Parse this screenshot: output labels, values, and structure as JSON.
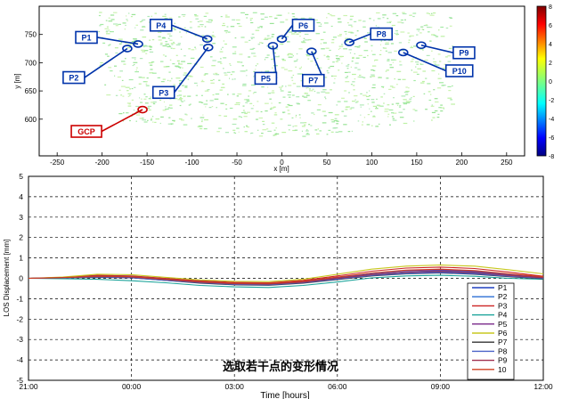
{
  "chart_data": [
    {
      "type": "scatter",
      "xlabel": "x [m]",
      "ylabel": "y [m]",
      "xlim": [
        -270,
        270
      ],
      "ylim": [
        535,
        800
      ],
      "xticks": [
        "-250",
        "-200",
        "-150",
        "-100",
        "-50",
        "0",
        "50",
        "100",
        "150",
        "200",
        "250"
      ],
      "xtick_values": [
        -250,
        -200,
        -150,
        -100,
        -50,
        0,
        50,
        100,
        150,
        200,
        250
      ],
      "yticks": [
        "600",
        "650",
        "700",
        "750"
      ],
      "ytick_values": [
        600,
        650,
        700,
        750
      ],
      "colorbar": {
        "ticks": [
          "8",
          "6",
          "4",
          "2",
          "0",
          "-2",
          "-4",
          "-6",
          "-8"
        ],
        "tick_values": [
          8,
          6,
          4,
          2,
          0,
          -2,
          -4,
          -6,
          -8
        ],
        "range": [
          -8,
          8
        ]
      },
      "points": [
        {
          "label": "P1",
          "x": -160,
          "y": 733
        },
        {
          "label": "P2",
          "x": -172,
          "y": 725
        },
        {
          "label": "P3",
          "x": -82,
          "y": 727
        },
        {
          "label": "P4",
          "x": -83,
          "y": 742
        },
        {
          "label": "P5",
          "x": -10,
          "y": 730
        },
        {
          "label": "P6",
          "x": 0,
          "y": 742
        },
        {
          "label": "P7",
          "x": 33,
          "y": 720
        },
        {
          "label": "P8",
          "x": 75,
          "y": 736
        },
        {
          "label": "P9",
          "x": 155,
          "y": 731
        },
        {
          "label": "P10",
          "x": 135,
          "y": 718
        },
        {
          "label": "GCP",
          "x": -155,
          "y": 617
        }
      ],
      "point_color": "#0033aa",
      "gcp_color": "#cc0000"
    },
    {
      "type": "line",
      "xlabel": "Time [hours]",
      "ylabel": "LOS Displacement [mm]",
      "annotation": "选取若干点的变形情况",
      "xlim": [
        0,
        15
      ],
      "ylim": [
        -5,
        5
      ],
      "xticks": [
        "21:00",
        "00:00",
        "03:00",
        "06:00",
        "09:00",
        "12:00"
      ],
      "xtick_values": [
        0,
        3,
        6,
        9,
        12,
        15
      ],
      "yticks": [
        "5",
        "4",
        "3",
        "2",
        "1",
        "0",
        "-1",
        "-2",
        "-3",
        "-4",
        "-5"
      ],
      "ytick_values": [
        5,
        4,
        3,
        2,
        1,
        0,
        -1,
        -2,
        -3,
        -4,
        -5
      ],
      "x": [
        0,
        1,
        2,
        3,
        4,
        5,
        6,
        7,
        8,
        9,
        10,
        11,
        12,
        13,
        14,
        15
      ],
      "series": [
        {
          "name": "P1",
          "color": "#1f3fbf",
          "values": [
            0,
            0.02,
            0.08,
            0.05,
            -0.08,
            -0.2,
            -0.28,
            -0.3,
            -0.2,
            -0.02,
            0.15,
            0.25,
            0.3,
            0.25,
            0.12,
            0.02
          ]
        },
        {
          "name": "P2",
          "color": "#2b6fd6",
          "values": [
            0,
            0.03,
            0.1,
            0.08,
            -0.05,
            -0.18,
            -0.26,
            -0.28,
            -0.18,
            0.02,
            0.2,
            0.32,
            0.38,
            0.32,
            0.18,
            0.05
          ]
        },
        {
          "name": "P3",
          "color": "#cc2222",
          "values": [
            0,
            0.05,
            0.15,
            0.12,
            0.0,
            -0.12,
            -0.2,
            -0.22,
            -0.1,
            0.12,
            0.35,
            0.5,
            0.55,
            0.48,
            0.3,
            0.1
          ]
        },
        {
          "name": "P4",
          "color": "#1aa39a",
          "values": [
            0,
            -0.02,
            -0.05,
            -0.12,
            -0.22,
            -0.35,
            -0.42,
            -0.45,
            -0.35,
            -0.18,
            0.02,
            0.12,
            0.15,
            0.1,
            0.0,
            -0.05
          ]
        },
        {
          "name": "P5",
          "color": "#7a2a8a",
          "values": [
            0,
            0.04,
            0.12,
            0.1,
            -0.02,
            -0.15,
            -0.24,
            -0.26,
            -0.15,
            0.05,
            0.25,
            0.38,
            0.42,
            0.36,
            0.2,
            0.06
          ]
        },
        {
          "name": "P6",
          "color": "#c8c820",
          "values": [
            0,
            0.06,
            0.2,
            0.18,
            0.05,
            -0.08,
            -0.15,
            -0.16,
            -0.05,
            0.2,
            0.45,
            0.6,
            0.65,
            0.6,
            0.42,
            0.22
          ]
        },
        {
          "name": "P7",
          "color": "#333333",
          "values": [
            0,
            0.02,
            0.05,
            0.02,
            -0.1,
            -0.24,
            -0.32,
            -0.34,
            -0.24,
            -0.06,
            0.12,
            0.22,
            0.26,
            0.2,
            0.08,
            -0.02
          ]
        },
        {
          "name": "P8",
          "color": "#4a62c8",
          "values": [
            0,
            0.02,
            0.06,
            0.03,
            -0.1,
            -0.22,
            -0.3,
            -0.32,
            -0.22,
            -0.04,
            0.14,
            0.24,
            0.28,
            0.22,
            0.1,
            0.0
          ]
        },
        {
          "name": "P9",
          "color": "#a03050",
          "values": [
            0,
            0.03,
            0.09,
            0.06,
            -0.06,
            -0.19,
            -0.27,
            -0.29,
            -0.19,
            0.0,
            0.18,
            0.3,
            0.34,
            0.28,
            0.14,
            0.03
          ]
        },
        {
          "name": "10",
          "color": "#d04020",
          "values": [
            0,
            0.04,
            0.11,
            0.09,
            -0.03,
            -0.16,
            -0.24,
            -0.25,
            -0.14,
            0.06,
            0.26,
            0.4,
            0.45,
            0.38,
            0.22,
            0.08
          ]
        }
      ],
      "legend_placement": "bottom-right",
      "grid": true
    }
  ]
}
